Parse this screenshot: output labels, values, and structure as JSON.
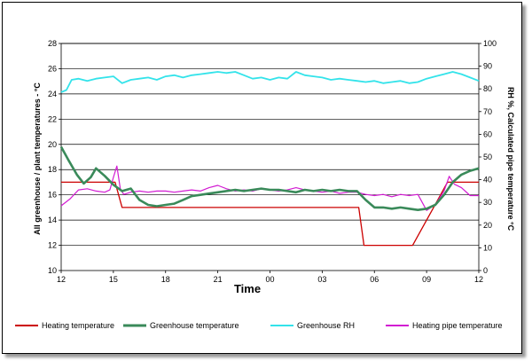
{
  "chart_data": {
    "type": "line",
    "title": "",
    "xlabel": "Time",
    "ylabel_left": "All greenhouse / plant temperatures  -   °C",
    "ylabel_right": "RH %, Calculated pipe temperature  °C",
    "y_left_lim": [
      10,
      28
    ],
    "y_right_lim": [
      0,
      100
    ],
    "y_left_ticks": [
      10,
      12,
      14,
      16,
      18,
      20,
      22,
      24,
      26,
      28
    ],
    "y_right_ticks": [
      0,
      10,
      20,
      30,
      40,
      50,
      60,
      70,
      80,
      90,
      100
    ],
    "x_range_hours": [
      0,
      24
    ],
    "x_ticks": [
      {
        "x": 0,
        "label": "12"
      },
      {
        "x": 3,
        "label": "15"
      },
      {
        "x": 6,
        "label": "18"
      },
      {
        "x": 9,
        "label": "21"
      },
      {
        "x": 12,
        "label": "00"
      },
      {
        "x": 15,
        "label": "03"
      },
      {
        "x": 18,
        "label": "06"
      },
      {
        "x": 21,
        "label": "09"
      },
      {
        "x": 24,
        "label": "12"
      }
    ],
    "grid": "horizontal",
    "legend_position": "bottom",
    "series": [
      {
        "name": "Heating temperature",
        "axis": "left",
        "color": "#cc0000",
        "points": [
          [
            0,
            17
          ],
          [
            3.1,
            17
          ],
          [
            3.5,
            15
          ],
          [
            17.1,
            15
          ],
          [
            17.4,
            12
          ],
          [
            20.2,
            12
          ],
          [
            21.4,
            15
          ],
          [
            22.2,
            17
          ],
          [
            24,
            17
          ]
        ]
      },
      {
        "name": "Greenhouse temperature",
        "axis": "left",
        "color": "#3a8a5a",
        "points": [
          [
            0,
            19.8
          ],
          [
            0.4,
            18.8
          ],
          [
            0.9,
            17.6
          ],
          [
            1.3,
            16.9
          ],
          [
            1.7,
            17.4
          ],
          [
            2.0,
            18.1
          ],
          [
            2.5,
            17.5
          ],
          [
            3.0,
            16.8
          ],
          [
            3.5,
            16.3
          ],
          [
            4.0,
            16.5
          ],
          [
            4.5,
            15.6
          ],
          [
            5.0,
            15.2
          ],
          [
            5.5,
            15.1
          ],
          [
            6.0,
            15.2
          ],
          [
            6.5,
            15.3
          ],
          [
            7.0,
            15.6
          ],
          [
            7.5,
            15.9
          ],
          [
            8.0,
            16.0
          ],
          [
            8.5,
            16.1
          ],
          [
            9.0,
            16.2
          ],
          [
            9.5,
            16.3
          ],
          [
            10.0,
            16.4
          ],
          [
            10.5,
            16.3
          ],
          [
            11.0,
            16.4
          ],
          [
            11.5,
            16.5
          ],
          [
            12.0,
            16.4
          ],
          [
            12.5,
            16.4
          ],
          [
            13.0,
            16.3
          ],
          [
            13.5,
            16.2
          ],
          [
            14.0,
            16.4
          ],
          [
            14.5,
            16.3
          ],
          [
            15.0,
            16.4
          ],
          [
            15.5,
            16.3
          ],
          [
            16.0,
            16.4
          ],
          [
            16.5,
            16.3
          ],
          [
            17.0,
            16.3
          ],
          [
            17.5,
            15.6
          ],
          [
            18.0,
            15.0
          ],
          [
            18.5,
            15.0
          ],
          [
            19.0,
            14.9
          ],
          [
            19.5,
            15.0
          ],
          [
            20.0,
            14.9
          ],
          [
            20.5,
            14.8
          ],
          [
            21.0,
            14.9
          ],
          [
            21.5,
            15.2
          ],
          [
            22.0,
            16.0
          ],
          [
            22.5,
            17.0
          ],
          [
            23.0,
            17.6
          ],
          [
            23.5,
            17.9
          ],
          [
            24.0,
            18.1
          ]
        ]
      },
      {
        "name": "Greenhouse RH",
        "axis": "right",
        "color": "#33e3ea",
        "points": [
          [
            0,
            78.5
          ],
          [
            0.3,
            79.5
          ],
          [
            0.6,
            84.0
          ],
          [
            1.0,
            84.5
          ],
          [
            1.5,
            83.5
          ],
          [
            2.0,
            84.5
          ],
          [
            2.5,
            85.0
          ],
          [
            3.0,
            85.5
          ],
          [
            3.5,
            82.5
          ],
          [
            4.0,
            84.0
          ],
          [
            4.5,
            84.5
          ],
          [
            5.0,
            85.0
          ],
          [
            5.5,
            84.0
          ],
          [
            6.0,
            85.5
          ],
          [
            6.5,
            86.0
          ],
          [
            7.0,
            85.0
          ],
          [
            7.5,
            86.0
          ],
          [
            8.0,
            86.5
          ],
          [
            8.5,
            87.0
          ],
          [
            9.0,
            87.5
          ],
          [
            9.5,
            87.0
          ],
          [
            10.0,
            87.5
          ],
          [
            10.5,
            86.0
          ],
          [
            11.0,
            84.5
          ],
          [
            11.5,
            85.0
          ],
          [
            12.0,
            84.0
          ],
          [
            12.5,
            85.0
          ],
          [
            13.0,
            84.5
          ],
          [
            13.5,
            87.5
          ],
          [
            14.0,
            86.0
          ],
          [
            14.5,
            85.5
          ],
          [
            15.0,
            85.0
          ],
          [
            15.5,
            84.0
          ],
          [
            16.0,
            84.5
          ],
          [
            16.5,
            84.0
          ],
          [
            17.0,
            83.5
          ],
          [
            17.5,
            83.0
          ],
          [
            18.0,
            83.5
          ],
          [
            18.5,
            82.5
          ],
          [
            19.0,
            83.0
          ],
          [
            19.5,
            83.5
          ],
          [
            20.0,
            82.5
          ],
          [
            20.5,
            83.0
          ],
          [
            21.0,
            84.5
          ],
          [
            21.5,
            85.5
          ],
          [
            22.0,
            86.5
          ],
          [
            22.5,
            87.5
          ],
          [
            23.0,
            86.5
          ],
          [
            23.5,
            85.0
          ],
          [
            24.0,
            83.5
          ]
        ]
      },
      {
        "name": "Heating pipe temperature",
        "axis": "right",
        "color": "#d21bd2",
        "points": [
          [
            0,
            28.5
          ],
          [
            0.5,
            31.5
          ],
          [
            1.0,
            35.5
          ],
          [
            1.5,
            36.0
          ],
          [
            2.0,
            35.0
          ],
          [
            2.5,
            34.5
          ],
          [
            2.8,
            35.5
          ],
          [
            3.0,
            41.0
          ],
          [
            3.2,
            46.0
          ],
          [
            3.4,
            36.0
          ],
          [
            3.6,
            33.5
          ],
          [
            4.0,
            34.5
          ],
          [
            4.5,
            35.0
          ],
          [
            5.0,
            34.5
          ],
          [
            5.5,
            35.0
          ],
          [
            6.0,
            35.0
          ],
          [
            6.5,
            34.5
          ],
          [
            7.0,
            35.0
          ],
          [
            7.5,
            35.5
          ],
          [
            8.0,
            35.0
          ],
          [
            8.5,
            36.5
          ],
          [
            9.0,
            37.5
          ],
          [
            9.5,
            36.0
          ],
          [
            10.0,
            35.0
          ],
          [
            10.5,
            35.5
          ],
          [
            11.0,
            35.0
          ],
          [
            11.5,
            36.0
          ],
          [
            12.0,
            35.5
          ],
          [
            12.5,
            35.0
          ],
          [
            13.0,
            35.5
          ],
          [
            13.5,
            36.5
          ],
          [
            14.0,
            35.5
          ],
          [
            14.5,
            35.0
          ],
          [
            15.0,
            34.5
          ],
          [
            15.5,
            35.0
          ],
          [
            16.0,
            34.0
          ],
          [
            16.5,
            34.5
          ],
          [
            17.0,
            34.5
          ],
          [
            17.5,
            33.5
          ],
          [
            18.0,
            33.0
          ],
          [
            18.5,
            33.5
          ],
          [
            19.0,
            32.5
          ],
          [
            19.5,
            33.5
          ],
          [
            20.0,
            33.0
          ],
          [
            20.5,
            33.5
          ],
          [
            21.0,
            26.5
          ],
          [
            21.5,
            29.0
          ],
          [
            22.0,
            35.0
          ],
          [
            22.3,
            41.5
          ],
          [
            22.6,
            38.0
          ],
          [
            23.0,
            36.5
          ],
          [
            23.5,
            33.0
          ],
          [
            24.0,
            33.0
          ]
        ]
      }
    ]
  }
}
